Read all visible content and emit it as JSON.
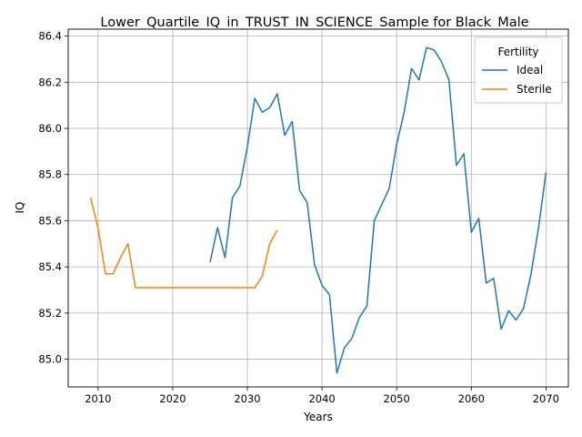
{
  "chart_data": {
    "type": "line",
    "title": "Lower_Quartile_IQ_in_TRUST_IN_SCIENCE_Sample for Black_Male",
    "xlabel": "Years",
    "ylabel": "IQ",
    "xlim": [
      2006,
      2073
    ],
    "ylim": [
      84.88,
      86.43
    ],
    "xticks": [
      2010,
      2020,
      2030,
      2040,
      2050,
      2060,
      2070
    ],
    "yticks": [
      85.0,
      85.2,
      85.4,
      85.6,
      85.8,
      86.0,
      86.2,
      86.4
    ],
    "ytick_labels": [
      "85.0",
      "85.2",
      "85.4",
      "85.6",
      "85.8",
      "86.0",
      "86.2",
      "86.4"
    ],
    "grid": true,
    "legend": {
      "title": "Fertility",
      "placement": "top-right"
    },
    "series": [
      {
        "name": "Ideal",
        "color": "#1f77b4",
        "x": [
          2025,
          2026,
          2027,
          2028,
          2029,
          2030,
          2031,
          2032,
          2033,
          2034,
          2035,
          2036,
          2037,
          2038,
          2039,
          2040,
          2041,
          2042,
          2043,
          2044,
          2045,
          2046,
          2047,
          2048,
          2049,
          2050,
          2051,
          2052,
          2053,
          2054,
          2055,
          2056,
          2057,
          2058,
          2059,
          2060,
          2061,
          2062,
          2063,
          2064,
          2065,
          2066,
          2067,
          2068,
          2069,
          2070
        ],
        "y": [
          85.42,
          85.57,
          85.44,
          85.7,
          85.75,
          85.92,
          86.13,
          86.07,
          86.09,
          86.15,
          85.97,
          86.03,
          85.73,
          85.68,
          85.41,
          85.32,
          85.28,
          84.94,
          85.05,
          85.09,
          85.18,
          85.23,
          85.6,
          85.67,
          85.74,
          85.93,
          86.07,
          86.26,
          86.21,
          86.35,
          86.34,
          86.29,
          86.21,
          85.84,
          85.89,
          85.55,
          85.61,
          85.33,
          85.35,
          85.13,
          85.21,
          85.17,
          85.22,
          85.37,
          85.57,
          85.81
        ]
      },
      {
        "name": "Sterile",
        "color": "#ff7f0e",
        "x": [
          2009,
          2010,
          2011,
          2012,
          2013,
          2014,
          2015,
          2016,
          2017,
          2018,
          2019,
          2020,
          2021,
          2022,
          2023,
          2024,
          2025,
          2026,
          2027,
          2028,
          2029,
          2030,
          2031,
          2032,
          2033,
          2034
        ],
        "y": [
          85.7,
          85.57,
          85.37,
          85.37,
          85.44,
          85.5,
          85.31,
          85.31,
          85.31,
          85.31,
          85.31,
          85.31,
          85.31,
          85.31,
          85.31,
          85.31,
          85.31,
          85.31,
          85.31,
          85.31,
          85.31,
          85.31,
          85.31,
          85.36,
          85.5,
          85.56
        ]
      }
    ]
  }
}
